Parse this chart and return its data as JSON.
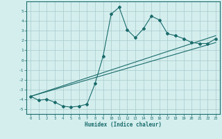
{
  "title": "",
  "xlabel": "Humidex (Indice chaleur)",
  "xlim": [
    -0.5,
    23.5
  ],
  "ylim": [
    -5.5,
    6.0
  ],
  "yticks": [
    -5,
    -4,
    -3,
    -2,
    -1,
    0,
    1,
    2,
    3,
    4,
    5
  ],
  "xticks": [
    0,
    1,
    2,
    3,
    4,
    5,
    6,
    7,
    8,
    9,
    10,
    11,
    12,
    13,
    14,
    15,
    16,
    17,
    18,
    19,
    20,
    21,
    22,
    23
  ],
  "bg_color": "#d4eeee",
  "line_color": "#1a6b6b",
  "grid_color": "#aacaca",
  "line1_x": [
    0,
    1,
    2,
    3,
    4,
    5,
    6,
    7,
    8,
    9,
    10,
    11,
    12,
    13,
    14,
    15,
    16,
    17,
    18,
    19,
    20,
    21,
    22,
    23
  ],
  "line1_y": [
    -3.7,
    -4.1,
    -4.0,
    -4.3,
    -4.7,
    -4.8,
    -4.7,
    -4.5,
    -2.4,
    0.4,
    4.7,
    5.4,
    3.1,
    2.3,
    3.2,
    4.5,
    4.1,
    2.7,
    2.5,
    2.2,
    1.8,
    1.7,
    1.7,
    2.2
  ],
  "line2_x": [
    0,
    23
  ],
  "line2_y": [
    -3.7,
    2.5
  ],
  "line3_x": [
    0,
    23
  ],
  "line3_y": [
    -3.7,
    1.8
  ]
}
